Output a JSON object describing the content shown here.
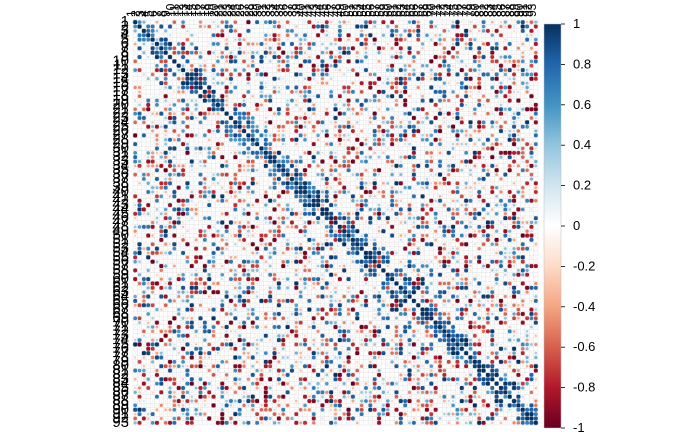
{
  "chart_data": {
    "type": "heatmap",
    "subtype": "correlation-matrix",
    "title": "",
    "xlabel": "",
    "ylabel": "",
    "n": 93,
    "row_labels_visible": [
      "1",
      "2",
      "3",
      "4",
      "5",
      "6",
      "7",
      "8",
      "9",
      "10",
      "11",
      "12",
      "13",
      "14",
      "15",
      "16",
      "17",
      "18",
      "19",
      "20",
      "21",
      "22",
      "23",
      "24",
      "25",
      "26",
      "27",
      "28",
      "29",
      "30",
      "31",
      "32",
      "33",
      "34",
      "35",
      "36",
      "37",
      "38",
      "39",
      "40",
      "41",
      "42",
      "43",
      "44",
      "45",
      "46",
      "47",
      "48",
      "49",
      "50",
      "51",
      "52",
      "53",
      "54",
      "55",
      "56",
      "57",
      "58",
      "59",
      "60",
      "61",
      "62",
      "63",
      "64",
      "65",
      "66",
      "67",
      "68",
      "69",
      "70",
      "71",
      "72",
      "73",
      "74",
      "75",
      "76",
      "77",
      "78",
      "79",
      "80",
      "81",
      "82",
      "83",
      "84",
      "85",
      "86",
      "87",
      "88",
      "89",
      "90",
      "91",
      "92",
      "93"
    ],
    "diagonal_value": 1,
    "cell_shape": "circle",
    "colorbar": {
      "ticks": [
        1,
        0.8,
        0.6,
        0.4,
        0.2,
        0,
        -0.2,
        -0.4,
        -0.6,
        -0.8,
        -1
      ],
      "tick_labels": [
        "1",
        "0.8",
        "0.6",
        "0.4",
        "0.2",
        "0",
        "-0.2",
        "-0.4",
        "-0.6",
        "-0.8",
        "-1"
      ],
      "range": [
        -1,
        1
      ],
      "colors": [
        "#67001f",
        "#b2182b",
        "#d6604d",
        "#f4a582",
        "#fddbc7",
        "#ffffff",
        "#d1e5f0",
        "#92c5de",
        "#4393c3",
        "#2166ac",
        "#053061"
      ]
    },
    "grid": true,
    "grid_color": "#d9d9d9",
    "legend_placement": "right"
  }
}
